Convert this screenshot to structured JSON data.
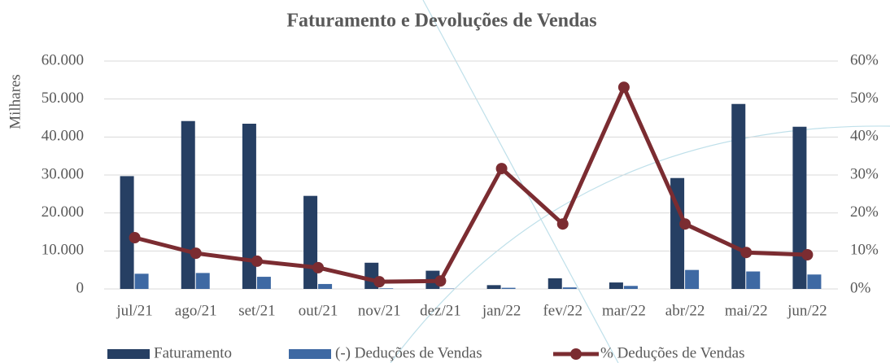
{
  "chart_data": {
    "type": "bar_line",
    "title": "Faturamento e Devoluções de Vendas",
    "ylabel": "Milhares",
    "categories": [
      "jul/21",
      "ago/21",
      "set/21",
      "out/21",
      "nov/21",
      "dez/21",
      "jan/22",
      "fev/22",
      "mar/22",
      "abr/22",
      "mai/22",
      "jun/22"
    ],
    "series": [
      {
        "name": "Faturamento",
        "type": "bar",
        "color": "#263f63",
        "values": [
          29700,
          44200,
          43500,
          24500,
          6900,
          4800,
          1000,
          2800,
          1700,
          29200,
          48700,
          42700
        ]
      },
      {
        "name": "(-) Deduções de Vendas",
        "type": "bar",
        "color": "#3e69a3",
        "values": [
          4000,
          4200,
          3200,
          1300,
          150,
          100,
          300,
          400,
          800,
          5000,
          4600,
          3800
        ]
      },
      {
        "name": "% Deduções de Vendas",
        "type": "line",
        "axis": "y2",
        "color": "#7b2c31",
        "values": [
          13.5,
          9.4,
          7.3,
          5.6,
          1.9,
          2.1,
          31.7,
          17.1,
          53.1,
          17.1,
          9.6,
          9.0
        ]
      }
    ],
    "ylim": [
      0,
      60000
    ],
    "yticks": [
      0,
      {
        "value": 10000,
        "label": "10.000"
      },
      {
        "value": 20000,
        "label": "20.000"
      },
      {
        "value": 30000,
        "label": "30.000"
      },
      {
        "value": 40000,
        "label": "40.000"
      },
      {
        "value": 50000,
        "label": "50.000"
      },
      {
        "value": 60000,
        "label": "60.000"
      }
    ],
    "y2lim": [
      0,
      60
    ],
    "y2ticks": [
      {
        "value": 0,
        "label": "0%"
      },
      {
        "value": 10,
        "label": "10%"
      },
      {
        "value": 20,
        "label": "20%"
      },
      {
        "value": 30,
        "label": "30%"
      },
      {
        "value": 40,
        "label": "40%"
      },
      {
        "value": 50,
        "label": "50%"
      },
      {
        "value": 60,
        "label": "60%"
      }
    ],
    "grid": true,
    "legend": "bottom"
  }
}
